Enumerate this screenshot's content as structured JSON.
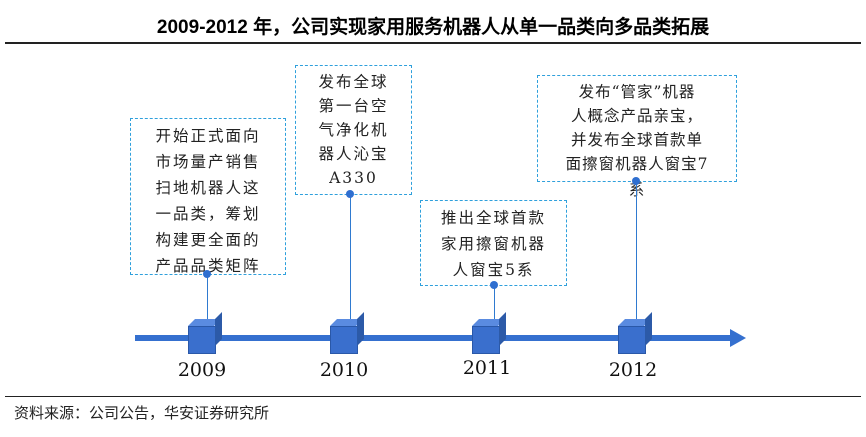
{
  "title": "2009-2012 年，公司实现家用服务机器人从单一品类向多品类拓展",
  "events": [
    {
      "year": "2009",
      "lines": [
        "开始正式面向",
        "市场量产销售",
        "扫地机器人这",
        "一品类，筹划",
        "构建更全面的",
        "产品品类矩阵"
      ]
    },
    {
      "year": "2010",
      "lines": [
        "发布全球",
        "第一台空",
        "气净化机",
        "器人沁宝",
        "A330"
      ]
    },
    {
      "year": "2011",
      "lines": [
        "推出全球首款",
        "家用擦窗机器",
        "人窗宝5系"
      ]
    },
    {
      "year": "2012",
      "lines": [
        "发布“管家”机器",
        "人概念产品亲宝，",
        "并发布全球首款单",
        "面擦窗机器人窗宝7",
        "系"
      ]
    }
  ],
  "source": "资料来源：公司公告，华安证券研究所",
  "colors": {
    "axis": "#3570cf",
    "box_border": "#2fa0dc"
  }
}
